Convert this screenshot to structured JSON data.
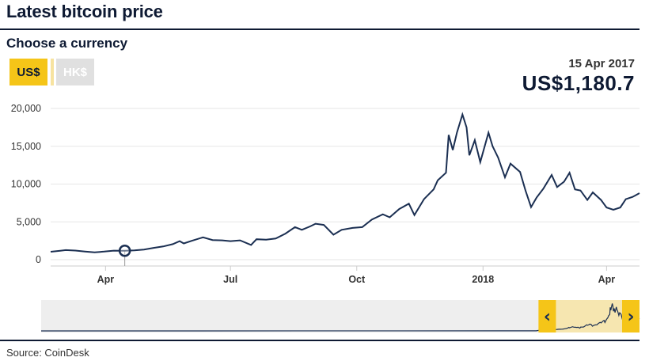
{
  "header": {
    "title": "Latest bitcoin price"
  },
  "controls": {
    "subtitle": "Choose a currency",
    "buttons": [
      {
        "label": "US$",
        "active": true
      },
      {
        "label": "HK$",
        "active": false
      }
    ]
  },
  "tooltip": {
    "date": "15 Apr 2017",
    "value": "US$1,180.7"
  },
  "footer": {
    "source": "Source: CoinDesk"
  },
  "navigator": {
    "left_arrow": "‹",
    "right_arrow": "›"
  },
  "colors": {
    "line": "#1b2f52",
    "accent": "#f5c518",
    "grid": "#e6e6e6"
  },
  "chart_data": {
    "type": "line",
    "title": "",
    "xlabel": "",
    "ylabel": "",
    "ylim": [
      0,
      20000
    ],
    "yticks": [
      0,
      5000,
      10000,
      15000,
      20000
    ],
    "ytick_labels": [
      "0",
      "5,000",
      "10,000",
      "15,000",
      "20,000"
    ],
    "xlim": [
      "2017-02-20",
      "2018-04-25"
    ],
    "xticks": [
      {
        "date": "2017-04-01",
        "label": "Apr"
      },
      {
        "date": "2017-07-01",
        "label": "Jul"
      },
      {
        "date": "2017-10-01",
        "label": "Oct"
      },
      {
        "date": "2018-01-01",
        "label": "2018"
      },
      {
        "date": "2018-04-01",
        "label": "Apr"
      }
    ],
    "highlight": {
      "date": "2017-04-15",
      "value": 1180.7
    },
    "navigator_range": [
      "2017-01-01",
      "2018-04-25"
    ],
    "navigator_history_start": "2010-07-18",
    "series": [
      {
        "points": [
          [
            "2017-02-20",
            1050
          ],
          [
            "2017-02-27",
            1180
          ],
          [
            "2017-03-03",
            1270
          ],
          [
            "2017-03-10",
            1200
          ],
          [
            "2017-03-17",
            1080
          ],
          [
            "2017-03-24",
            970
          ],
          [
            "2017-03-31",
            1070
          ],
          [
            "2017-04-07",
            1190
          ],
          [
            "2017-04-15",
            1180.7
          ],
          [
            "2017-04-22",
            1240
          ],
          [
            "2017-04-29",
            1340
          ],
          [
            "2017-05-06",
            1560
          ],
          [
            "2017-05-13",
            1750
          ],
          [
            "2017-05-20",
            2050
          ],
          [
            "2017-05-25",
            2450
          ],
          [
            "2017-05-28",
            2150
          ],
          [
            "2017-06-03",
            2500
          ],
          [
            "2017-06-11",
            2950
          ],
          [
            "2017-06-18",
            2600
          ],
          [
            "2017-06-25",
            2550
          ],
          [
            "2017-07-01",
            2450
          ],
          [
            "2017-07-08",
            2550
          ],
          [
            "2017-07-16",
            1950
          ],
          [
            "2017-07-20",
            2700
          ],
          [
            "2017-07-27",
            2650
          ],
          [
            "2017-08-03",
            2800
          ],
          [
            "2017-08-10",
            3450
          ],
          [
            "2017-08-17",
            4300
          ],
          [
            "2017-08-22",
            3950
          ],
          [
            "2017-08-28",
            4400
          ],
          [
            "2017-09-01",
            4750
          ],
          [
            "2017-09-07",
            4600
          ],
          [
            "2017-09-14",
            3300
          ],
          [
            "2017-09-20",
            3950
          ],
          [
            "2017-09-28",
            4200
          ],
          [
            "2017-10-05",
            4300
          ],
          [
            "2017-10-12",
            5300
          ],
          [
            "2017-10-20",
            6000
          ],
          [
            "2017-10-25",
            5600
          ],
          [
            "2017-11-01",
            6700
          ],
          [
            "2017-11-08",
            7400
          ],
          [
            "2017-11-12",
            5900
          ],
          [
            "2017-11-19",
            8000
          ],
          [
            "2017-11-26",
            9300
          ],
          [
            "2017-11-29",
            10500
          ],
          [
            "2017-12-05",
            11500
          ],
          [
            "2017-12-07",
            16500
          ],
          [
            "2017-12-10",
            14500
          ],
          [
            "2017-12-13",
            16800
          ],
          [
            "2017-12-17",
            19200
          ],
          [
            "2017-12-20",
            17500
          ],
          [
            "2017-12-22",
            13800
          ],
          [
            "2017-12-26",
            15800
          ],
          [
            "2017-12-30",
            12900
          ],
          [
            "2018-01-05",
            16800
          ],
          [
            "2018-01-08",
            15000
          ],
          [
            "2018-01-12",
            13500
          ],
          [
            "2018-01-17",
            10900
          ],
          [
            "2018-01-21",
            12700
          ],
          [
            "2018-01-28",
            11600
          ],
          [
            "2018-02-01",
            9100
          ],
          [
            "2018-02-05",
            6950
          ],
          [
            "2018-02-09",
            8200
          ],
          [
            "2018-02-14",
            9400
          ],
          [
            "2018-02-20",
            11200
          ],
          [
            "2018-02-24",
            9600
          ],
          [
            "2018-03-01",
            10300
          ],
          [
            "2018-03-05",
            11500
          ],
          [
            "2018-03-09",
            9300
          ],
          [
            "2018-03-13",
            9150
          ],
          [
            "2018-03-18",
            7900
          ],
          [
            "2018-03-22",
            8900
          ],
          [
            "2018-03-28",
            7900
          ],
          [
            "2018-04-01",
            6900
          ],
          [
            "2018-04-06",
            6600
          ],
          [
            "2018-04-11",
            6900
          ],
          [
            "2018-04-15",
            8000
          ],
          [
            "2018-04-20",
            8300
          ],
          [
            "2018-04-25",
            8800
          ]
        ]
      }
    ]
  }
}
